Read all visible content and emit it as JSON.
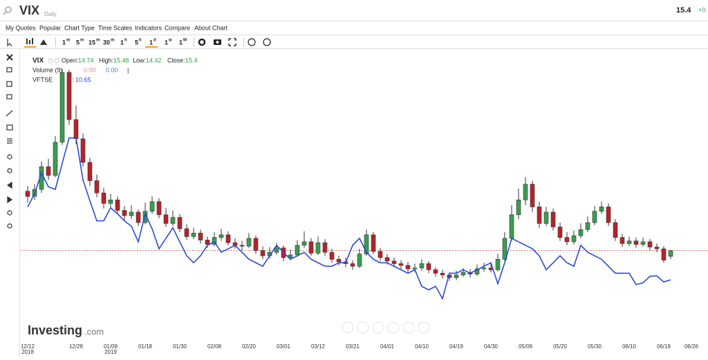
{
  "header": {
    "symbol": "VIX",
    "period": "Daily",
    "change": "+0."
  },
  "menu": [
    "My Quotes",
    "Popular",
    "Chart Type",
    "Time Scales",
    "Indicators",
    "Compare",
    "About Chart"
  ],
  "intervals": [
    [
      "1",
      "m"
    ],
    [
      "5",
      "m"
    ],
    [
      "15",
      "m"
    ],
    [
      "30",
      "m"
    ],
    [
      "1",
      "h"
    ],
    [
      "5",
      "h"
    ],
    [
      "1",
      "d"
    ],
    [
      "1",
      "w"
    ],
    [
      "1",
      "M"
    ]
  ],
  "legend": {
    "symbol": "VIX",
    "open": "Open:",
    "high": "High:",
    "low": "Low:",
    "close": "Close:",
    "volume": "Volume (9)",
    "volume_a": "0.00",
    "volume_b": "0.00",
    "sep": "|",
    "colon": ":"
  },
  "logo": {
    "brand": "Investing",
    "domain": ".com"
  },
  "chart_data": {
    "type": "candlestick",
    "categories": [
      "12/12",
      null,
      null,
      null,
      null,
      null,
      null,
      "12/28",
      null,
      null,
      null,
      null,
      "01/09",
      null,
      null,
      null,
      null,
      "01/18",
      null,
      null,
      null,
      null,
      "01/30",
      null,
      null,
      null,
      null,
      "02/08",
      null,
      null,
      null,
      null,
      "02/20",
      null,
      null,
      null,
      null,
      "03/01",
      null,
      null,
      null,
      null,
      "03/12",
      null,
      null,
      null,
      null,
      "03/21",
      null,
      null,
      null,
      null,
      "04/01",
      null,
      null,
      null,
      null,
      "04/10",
      null,
      null,
      null,
      null,
      "04/19",
      null,
      null,
      null,
      null,
      "04/30",
      null,
      null,
      null,
      null,
      "05/09",
      null,
      null,
      null,
      null,
      "05/20",
      null,
      null,
      null,
      null,
      "05/30",
      null,
      null,
      null,
      null,
      "06/10",
      null,
      null,
      null,
      null,
      "06/19",
      null,
      null,
      null,
      "06/26"
    ],
    "category_years": [
      "2018",
      null,
      null,
      null,
      null,
      null,
      null,
      null,
      null,
      null,
      null,
      null,
      "2019",
      null,
      null,
      null,
      null,
      null,
      null,
      null,
      null,
      null,
      null,
      null,
      null,
      null,
      null,
      null,
      null,
      null,
      null,
      null,
      null,
      null,
      null,
      null,
      null,
      null,
      null,
      null,
      null,
      null,
      null,
      null,
      null,
      null,
      null,
      null,
      null,
      null,
      null,
      null,
      null,
      null,
      null,
      null,
      null,
      null,
      null,
      null,
      null,
      null,
      null,
      null,
      null,
      null,
      null,
      null,
      null,
      null,
      null,
      null,
      null,
      null,
      null,
      null,
      null,
      null,
      null,
      null,
      null,
      null,
      null,
      null,
      null,
      null,
      null,
      null,
      null,
      null,
      null,
      null,
      null,
      null,
      null,
      null,
      null
    ],
    "open": [
      22.2,
      21.6,
      22.4,
      25.0,
      24.0,
      27.8,
      35.8,
      30.4,
      28.2,
      25.5,
      23.4,
      22.0,
      20.8,
      21.2,
      20.0,
      19.4,
      19.8,
      18.6,
      19.9,
      21.0,
      19.5,
      18.5,
      19.2,
      17.9,
      17.0,
      17.4,
      16.6,
      16.1,
      16.9,
      17.2,
      16.3,
      16.0,
      15.9,
      16.8,
      15.4,
      14.8,
      15.2,
      15.7,
      14.6,
      14.9,
      16.0,
      16.4,
      15.1,
      16.3,
      15.2,
      14.4,
      14.1,
      13.9,
      13.6,
      15.0,
      17.2,
      15.3,
      14.6,
      14.2,
      13.9,
      13.7,
      13.3,
      13.4,
      13.9,
      13.2,
      12.8,
      12.6,
      12.3,
      12.6,
      12.9,
      12.7,
      13.3,
      13.4,
      13.2,
      14.4,
      16.8,
      19.5,
      21.2,
      23.0,
      20.4,
      18.5,
      19.8,
      18.1,
      16.9,
      16.4,
      17.1,
      17.8,
      18.6,
      19.9,
      20.4,
      18.6,
      16.9,
      16.2,
      16.5,
      16.1,
      16.4,
      15.8,
      15.6,
      14.74,
      null,
      null,
      null
    ],
    "high": [
      22.8,
      23.0,
      25.6,
      25.9,
      28.5,
      36.2,
      36.1,
      32.0,
      28.8,
      26.0,
      24.1,
      22.6,
      21.9,
      21.6,
      20.5,
      20.6,
      20.1,
      20.9,
      21.6,
      21.4,
      20.3,
      20.0,
      19.6,
      18.4,
      18.0,
      17.8,
      17.0,
      17.5,
      17.9,
      17.6,
      16.8,
      16.5,
      17.4,
      17.1,
      15.9,
      15.8,
      16.3,
      16.0,
      15.5,
      16.6,
      17.6,
      16.8,
      17.0,
      16.7,
      15.6,
      14.8,
      14.6,
      14.3,
      15.6,
      17.8,
      17.5,
      15.7,
      15.0,
      14.6,
      14.3,
      14.1,
      13.9,
      14.4,
      14.2,
      13.5,
      13.2,
      12.9,
      13.1,
      13.4,
      13.3,
      13.8,
      14.0,
      13.9,
      15.0,
      17.5,
      20.6,
      22.5,
      23.8,
      23.4,
      21.0,
      20.4,
      20.2,
      18.6,
      17.5,
      17.7,
      18.5,
      19.3,
      20.5,
      21.0,
      20.8,
      19.0,
      17.3,
      17.0,
      16.9,
      16.9,
      16.7,
      16.2,
      15.9,
      15.48,
      null,
      null,
      null
    ],
    "low": [
      20.9,
      21.2,
      22.0,
      23.5,
      23.8,
      27.5,
      29.8,
      27.6,
      25.0,
      22.8,
      21.5,
      20.2,
      20.3,
      19.6,
      18.9,
      19.0,
      18.2,
      18.4,
      19.6,
      19.1,
      18.1,
      18.2,
      17.5,
      16.6,
      16.7,
      16.2,
      15.7,
      15.9,
      16.5,
      16.0,
      15.6,
      15.4,
      15.7,
      15.0,
      14.4,
      14.5,
      14.9,
      14.2,
      14.3,
      14.7,
      15.7,
      14.8,
      14.9,
      14.8,
      14.0,
      13.7,
      13.5,
      13.2,
      13.4,
      14.8,
      15.0,
      14.2,
      13.8,
      13.5,
      13.3,
      12.9,
      13.0,
      13.1,
      12.8,
      12.4,
      12.2,
      11.9,
      12.0,
      12.4,
      12.3,
      12.5,
      13.0,
      12.9,
      13.0,
      14.2,
      16.5,
      19.0,
      20.6,
      19.8,
      18.0,
      18.2,
      17.7,
      16.5,
      16.0,
      16.1,
      16.8,
      17.5,
      18.3,
      19.6,
      18.2,
      16.5,
      15.8,
      15.9,
      15.7,
      15.8,
      15.4,
      15.2,
      14.0,
      14.42,
      null,
      null,
      null
    ],
    "close": [
      21.6,
      22.4,
      25.0,
      24.0,
      27.8,
      35.8,
      30.4,
      28.2,
      25.5,
      23.4,
      22.0,
      20.8,
      21.2,
      20.0,
      19.4,
      19.8,
      18.6,
      19.9,
      21.0,
      19.5,
      18.5,
      19.2,
      17.9,
      17.0,
      17.4,
      16.6,
      16.1,
      16.9,
      17.2,
      16.3,
      16.0,
      15.9,
      16.8,
      15.4,
      14.8,
      15.2,
      15.7,
      14.6,
      14.9,
      16.0,
      16.4,
      15.1,
      16.3,
      15.2,
      14.4,
      14.1,
      13.9,
      13.6,
      15.0,
      17.2,
      15.3,
      14.6,
      14.2,
      13.9,
      13.7,
      13.3,
      13.4,
      13.9,
      13.2,
      12.8,
      12.6,
      12.3,
      12.6,
      12.9,
      12.7,
      13.3,
      13.4,
      13.2,
      14.4,
      16.8,
      19.5,
      21.2,
      23.0,
      20.4,
      18.5,
      19.8,
      18.1,
      16.9,
      16.4,
      17.1,
      17.8,
      18.6,
      19.9,
      20.4,
      18.6,
      16.9,
      16.2,
      16.5,
      16.1,
      16.4,
      15.8,
      15.6,
      14.3,
      15.4,
      null,
      null,
      null
    ],
    "up_color": "#3a9d4f",
    "down_color": "#b8222a",
    "ylim": [
      5,
      38
    ],
    "y2lim": [
      3.6,
      36.6
    ],
    "series": [
      {
        "name": "VFTSE",
        "color": "#2a48d8",
        "axis": "y2",
        "values": [
          19.0,
          20.5,
          22.9,
          21.3,
          21.0,
          24.0,
          26.9,
          26.9,
          22.1,
          19.7,
          17.4,
          17.4,
          18.9,
          18.2,
          17.4,
          16.8,
          15.0,
          18.2,
          16.5,
          14.2,
          15.4,
          16.6,
          15.0,
          13.4,
          12.6,
          13.4,
          14.6,
          15.0,
          13.8,
          14.2,
          14.6,
          13.8,
          13.0,
          12.6,
          12.2,
          13.4,
          14.6,
          13.8,
          13.0,
          13.4,
          13.8,
          13.0,
          12.6,
          12.2,
          12.2,
          12.6,
          12.6,
          14.6,
          15.4,
          13.8,
          13.0,
          12.6,
          12.6,
          12.2,
          11.8,
          11.4,
          11.8,
          9.9,
          9.5,
          9.9,
          8.5,
          11.4,
          11.4,
          11.8,
          11.4,
          11.8,
          12.2,
          12.6,
          10.2,
          12.6,
          15.4,
          15.0,
          14.6,
          14.2,
          13.4,
          11.8,
          12.6,
          13.4,
          12.6,
          12.2,
          14.6,
          13.8,
          13.4,
          13.0,
          12.2,
          11.4,
          11.4,
          11.4,
          10.1,
          10.3,
          11.05,
          11.1,
          10.4,
          10.65,
          null,
          null,
          null
        ]
      }
    ]
  }
}
